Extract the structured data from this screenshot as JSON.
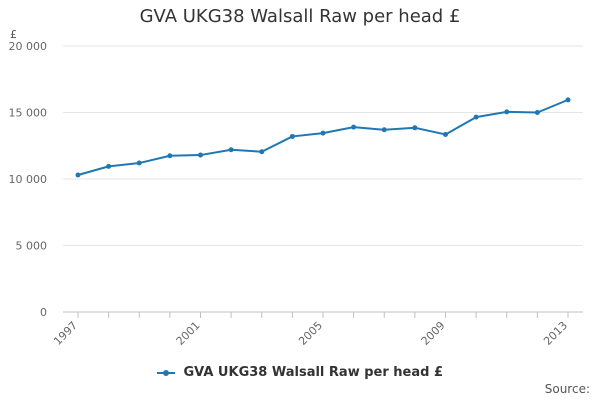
{
  "chart_data": {
    "type": "line",
    "title": "GVA UKG38 Walsall Raw per head £",
    "ylabel": "£",
    "xlabel": "",
    "x": [
      1997,
      1998,
      1999,
      2000,
      2001,
      2002,
      2003,
      2004,
      2005,
      2006,
      2007,
      2008,
      2009,
      2010,
      2011,
      2012,
      2013
    ],
    "x_tick_labels": [
      "1997",
      "2001",
      "2005",
      "2009",
      "2013"
    ],
    "y_tick_values": [
      0,
      5000,
      10000,
      15000,
      20000
    ],
    "y_tick_labels": [
      "0",
      "5 000",
      "10 000",
      "15 000",
      "20 000"
    ],
    "ylim": [
      0,
      20000
    ],
    "grid": "horizontal",
    "legend_position": "bottom",
    "series": [
      {
        "name": "GVA UKG38 Walsall Raw per head £",
        "color": "#1f78b4",
        "values": [
          10300,
          10950,
          11200,
          11750,
          11800,
          12200,
          12050,
          13200,
          13450,
          13900,
          13700,
          13850,
          13350,
          14650,
          15050,
          15000,
          15950
        ]
      }
    ]
  },
  "source_label": "Source:"
}
